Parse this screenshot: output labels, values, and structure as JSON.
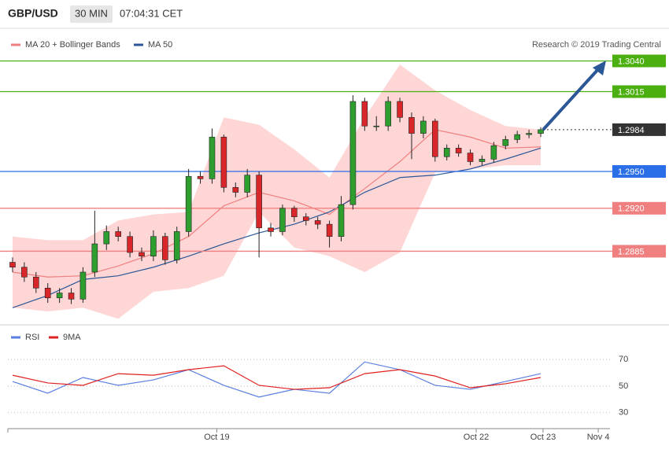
{
  "header": {
    "symbol": "GBP/USD",
    "interval": "30 MIN",
    "time": "07:04:31 CET"
  },
  "chart_data": [
    {
      "type": "candlestick",
      "credit": "Research © 2019 Trading Central",
      "x": [
        0,
        1,
        2,
        3,
        4,
        5,
        6,
        7,
        8,
        9,
        10,
        11,
        12,
        13,
        14,
        15,
        16,
        17,
        18,
        19,
        20,
        21,
        22,
        23,
        24,
        25,
        26,
        27,
        28,
        29,
        30,
        31,
        32,
        33,
        34,
        35,
        36,
        37,
        38,
        39,
        40,
        41,
        42,
        43,
        44,
        45
      ],
      "open": [
        1.2876,
        1.2872,
        1.2864,
        1.2855,
        1.2847,
        1.2851,
        1.2846,
        1.2868,
        1.2891,
        1.2901,
        1.2897,
        1.2884,
        1.2881,
        1.2897,
        1.2878,
        1.2901,
        1.2946,
        1.2944,
        1.2978,
        1.2937,
        1.2933,
        1.2947,
        1.2904,
        1.2901,
        1.292,
        1.2913,
        1.291,
        1.2907,
        1.2897,
        1.2923,
        1.3007,
        1.2987,
        1.2987,
        1.3007,
        1.2994,
        1.2981,
        1.2991,
        1.2962,
        1.2969,
        1.2965,
        1.2958,
        1.296,
        1.2971,
        1.2976,
        1.298,
        1.2981
      ],
      "high": [
        1.288,
        1.2876,
        1.2868,
        1.2859,
        1.2855,
        1.2855,
        1.2872,
        1.2918,
        1.2906,
        1.2905,
        1.2901,
        1.2888,
        1.2902,
        1.29,
        1.2905,
        1.2952,
        1.295,
        1.2985,
        1.298,
        1.2941,
        1.2952,
        1.295,
        1.2908,
        1.2923,
        1.2922,
        1.2916,
        1.2913,
        1.291,
        1.293,
        1.3012,
        1.301,
        1.2995,
        1.3011,
        1.301,
        1.2998,
        1.2995,
        1.2993,
        1.2972,
        1.2972,
        1.2968,
        1.2963,
        1.2974,
        1.2979,
        1.2983,
        1.2984,
        1.2986
      ],
      "low": [
        1.2868,
        1.286,
        1.2851,
        1.2843,
        1.2843,
        1.2842,
        1.2843,
        1.2864,
        1.2886,
        1.2893,
        1.288,
        1.2877,
        1.2877,
        1.2874,
        1.2875,
        1.2897,
        1.294,
        1.294,
        1.2933,
        1.2929,
        1.2929,
        1.288,
        1.2897,
        1.2898,
        1.2909,
        1.2906,
        1.2903,
        1.2888,
        1.2893,
        1.2919,
        1.2983,
        1.2983,
        1.2983,
        1.299,
        1.296,
        1.2977,
        1.2958,
        1.2959,
        1.2962,
        1.2955,
        1.2955,
        1.2957,
        1.2968,
        1.2973,
        1.2977,
        1.2978
      ],
      "close": [
        1.2872,
        1.2864,
        1.2855,
        1.2847,
        1.2851,
        1.2846,
        1.2868,
        1.2891,
        1.2901,
        1.2897,
        1.2884,
        1.2881,
        1.2897,
        1.2878,
        1.2901,
        1.2946,
        1.2944,
        1.2978,
        1.2937,
        1.2933,
        1.2947,
        1.2904,
        1.2901,
        1.292,
        1.2913,
        1.291,
        1.2907,
        1.2897,
        1.2923,
        1.3007,
        1.2987,
        1.2987,
        1.3007,
        1.2994,
        1.2981,
        1.2991,
        1.2962,
        1.2969,
        1.2965,
        1.2958,
        1.296,
        1.2971,
        1.2976,
        1.298,
        1.2981,
        1.2984
      ],
      "up_color": "#2e9e2e",
      "down_color": "#d9262a",
      "series": [
        {
          "name": "MA 20 + Bollinger Bands",
          "color": "#f08080",
          "band_color": "#ffd6d6",
          "x": [
            0,
            3,
            6,
            9,
            12,
            15,
            18,
            21,
            24,
            27,
            30,
            33,
            36,
            39,
            42,
            45
          ],
          "values": [
            1.2868,
            1.2864,
            1.2865,
            1.2873,
            1.2883,
            1.2897,
            1.2922,
            1.2933,
            1.2926,
            1.2915,
            1.2936,
            1.2958,
            1.2984,
            1.2978,
            1.2969,
            1.297
          ],
          "upper": [
            1.2897,
            1.2894,
            1.2894,
            1.291,
            1.2915,
            1.2917,
            1.2994,
            1.2988,
            1.2968,
            1.2945,
            1.2994,
            1.3037,
            1.3016,
            1.3,
            1.2987,
            1.2984
          ],
          "lower": [
            1.2839,
            1.2836,
            1.2839,
            1.283,
            1.2852,
            1.2855,
            1.2865,
            1.2917,
            1.2888,
            1.2881,
            1.2868,
            1.2884,
            1.2949,
            1.2952,
            1.2955,
            1.2955
          ]
        },
        {
          "name": "MA 50",
          "color": "#2b5797",
          "x": [
            0,
            3,
            6,
            9,
            12,
            15,
            18,
            21,
            24,
            27,
            30,
            33,
            36,
            39,
            42,
            45
          ],
          "values": [
            1.2839,
            1.2849,
            1.2862,
            1.2865,
            1.2872,
            1.2881,
            1.2891,
            1.29,
            1.2907,
            1.2917,
            1.2933,
            1.2945,
            1.2947,
            1.2952,
            1.296,
            1.2969
          ]
        }
      ],
      "levels": [
        {
          "value": 1.304,
          "label": "1.3040",
          "color": "#4caf10",
          "dashed": false
        },
        {
          "value": 1.3015,
          "label": "1.3015",
          "color": "#4caf10",
          "dashed": false
        },
        {
          "value": 1.2984,
          "label": "1.2984",
          "color": "#333333",
          "dashed": true
        },
        {
          "value": 1.295,
          "label": "1.2950",
          "color": "#2a6ee8",
          "dashed": false
        },
        {
          "value": 1.292,
          "label": "1.2920",
          "color": "#f08080",
          "dashed": false
        },
        {
          "value": 1.2885,
          "label": "1.2885",
          "color": "#f08080",
          "dashed": false
        }
      ],
      "xlim": [
        -0.4,
        50.9
      ],
      "ylim": [
        1.2827,
        1.3064
      ]
    },
    {
      "type": "line",
      "series": [
        {
          "name": "RSI",
          "color": "#5b7fe0",
          "x": [
            0,
            3,
            6,
            9,
            12,
            15,
            18,
            21,
            24,
            27,
            30,
            33,
            36,
            39,
            42,
            45
          ],
          "values": [
            53.5,
            44.7,
            56.5,
            50.6,
            54.7,
            62.4,
            50.6,
            41.8,
            47.6,
            44.7,
            68.2,
            62.4,
            50.6,
            47.6,
            53.5,
            59.4
          ]
        },
        {
          "name": "9MA",
          "color": "#e02020",
          "x": [
            0,
            3,
            6,
            9,
            12,
            15,
            18,
            21,
            24,
            27,
            30,
            33,
            36,
            39,
            42,
            45
          ],
          "values": [
            58.2,
            52.4,
            50.6,
            59.4,
            58.2,
            62.4,
            65.3,
            50.6,
            47.6,
            48.8,
            59.4,
            62.4,
            57.6,
            48.8,
            51.8,
            56.5
          ]
        }
      ],
      "xlim": [
        -0.4,
        50.9
      ],
      "ylim": [
        21,
        92
      ],
      "yticks": [
        30,
        50,
        70
      ],
      "grid": true,
      "xticks": [
        {
          "value": 17.4,
          "label": "Oct 19"
        },
        {
          "value": 39.5,
          "label": "Oct 22"
        },
        {
          "value": 45.2,
          "label": "Oct 23"
        },
        {
          "value": 49.9,
          "label": "Nov 4"
        }
      ]
    }
  ]
}
